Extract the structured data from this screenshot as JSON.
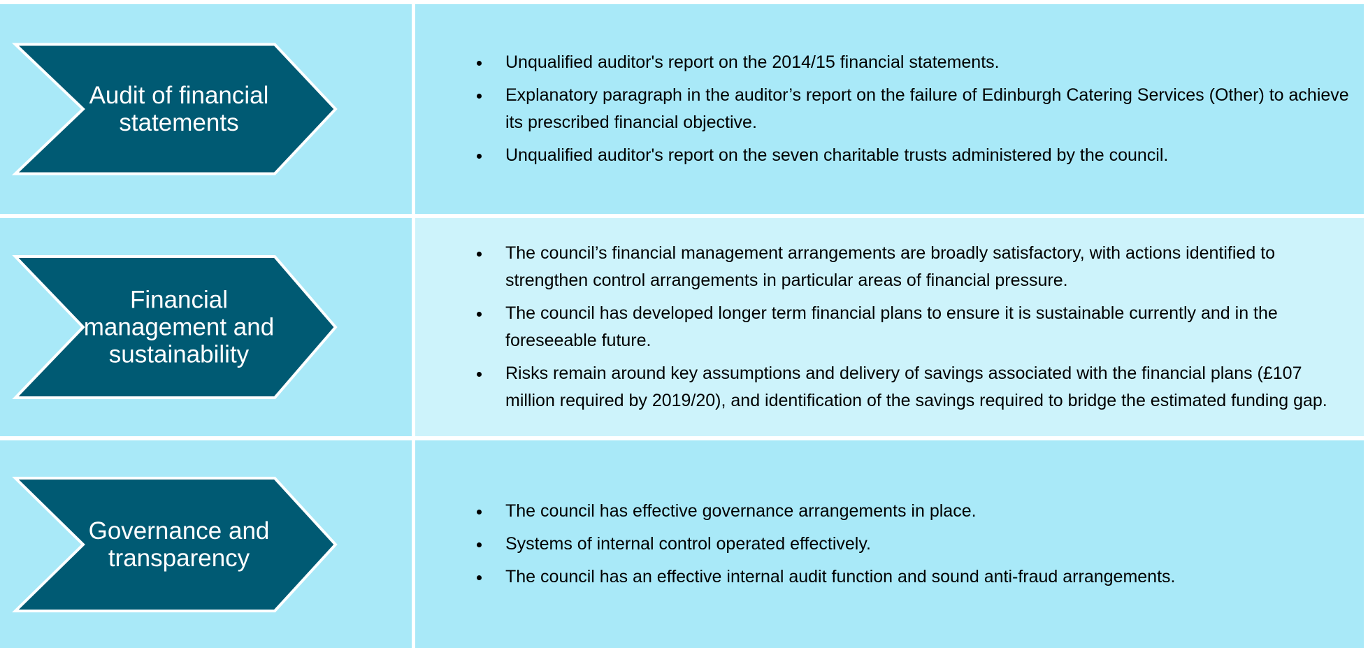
{
  "rows": [
    {
      "label": "Audit of financial statements",
      "bullets": [
        "Unqualified auditor's report on the 2014/15 financial statements.",
        "Explanatory paragraph in the auditor’s report on the failure of Edinburgh Catering Services (Other) to achieve its prescribed financial objective.",
        "Unqualified auditor's report on the seven charitable trusts administered by the council."
      ]
    },
    {
      "label": "Financial management and sustainability",
      "bullets": [
        "The council’s financial management arrangements are broadly satisfactory, with actions identified to strengthen control arrangements in particular areas of financial pressure.",
        "The council has developed longer term financial plans to ensure it is sustainable currently and in the foreseeable future.",
        "Risks remain around key assumptions and delivery of savings associated with the financial plans (£107 million required by 2019/20), and identification of the savings required to bridge the estimated funding gap."
      ]
    },
    {
      "label": "Governance and transparency",
      "bullets": [
        "The council has effective governance arrangements in place.",
        "Systems of internal control operated effectively.",
        "The council has an effective internal audit function and sound anti-fraud arrangements."
      ]
    }
  ]
}
